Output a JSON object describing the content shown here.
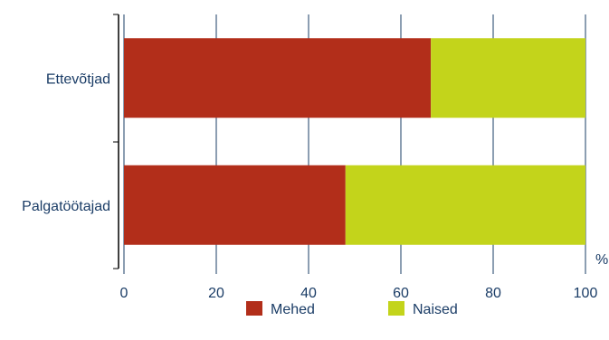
{
  "chart_data": {
    "type": "bar",
    "orientation": "horizontal",
    "stacked": true,
    "categories": [
      "Ettevõtjad",
      "Palgatöötajad"
    ],
    "series": [
      {
        "name": "Mehed",
        "values": [
          66.5,
          48
        ],
        "color": "#b22e1a"
      },
      {
        "name": "Naised",
        "values": [
          33.5,
          52
        ],
        "color": "#c3d41b"
      }
    ],
    "xlim": [
      0,
      100
    ],
    "x_ticks": [
      "0",
      "20",
      "40",
      "60",
      "80",
      "100"
    ],
    "x_unit": "%",
    "grid": true,
    "legend": "bottom"
  }
}
